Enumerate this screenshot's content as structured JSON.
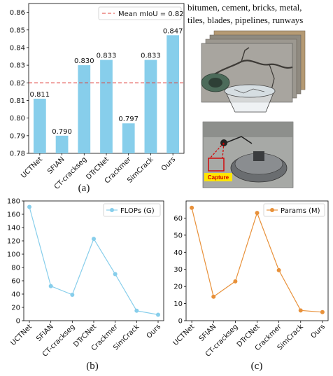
{
  "chart_data": [
    {
      "type": "bar",
      "caption": "(a)",
      "categories": [
        "UCTNet",
        "SFIAN",
        "CT-crackseg",
        "DTrCNet",
        "Crackmer",
        "SimCrack",
        "Ours"
      ],
      "values": [
        0.811,
        0.79,
        0.83,
        0.833,
        0.797,
        0.833,
        0.847
      ],
      "value_labels": [
        "0.811",
        "0.790",
        "0.830",
        "0.833",
        "0.797",
        "0.833",
        "0.847"
      ],
      "ylim": [
        0.78,
        0.865
      ],
      "yticks": [
        0.78,
        0.79,
        0.8,
        0.81,
        0.82,
        0.83,
        0.84,
        0.85,
        0.86
      ],
      "ytick_labels": [
        "0.78",
        "0.79",
        "0.80",
        "0.81",
        "0.82",
        "0.83",
        "0.84",
        "0.85",
        "0.86"
      ],
      "reference_line": {
        "value": 0.82,
        "label": "Mean mIoU = 0.82",
        "color": "#e0403a"
      },
      "bar_color": "#87ceeb",
      "legend_position": "top-right"
    },
    {
      "type": "line",
      "caption": "(b)",
      "categories": [
        "UCTNet",
        "SFIAN",
        "CT-crackseg",
        "DTrCNet",
        "Crackmer",
        "SimCrack",
        "Ours"
      ],
      "series": [
        {
          "name": "FLOPs (G)",
          "values": [
            171,
            52,
            39,
            123,
            70,
            15,
            9
          ],
          "color": "#87ceeb"
        }
      ],
      "ylim": [
        0,
        180
      ],
      "yticks": [
        0,
        20,
        40,
        60,
        80,
        100,
        120,
        140,
        160,
        180
      ],
      "ytick_labels": [
        "0",
        "20",
        "40",
        "60",
        "80",
        "100",
        "120",
        "140",
        "160",
        "180"
      ],
      "grid": false,
      "legend_position": "top-right"
    },
    {
      "type": "line",
      "caption": "(c)",
      "categories": [
        "UCTNet",
        "SFIAN",
        "CT-crackseg",
        "DTrCNet",
        "Crackmer",
        "SimCrack",
        "Ours"
      ],
      "series": [
        {
          "name": "Params (M)",
          "values": [
            66,
            14,
            23,
            63,
            29.5,
            6,
            5
          ],
          "color": "#e8913a"
        }
      ],
      "ylim": [
        0,
        70
      ],
      "yticks": [
        0,
        10,
        20,
        30,
        40,
        50,
        60
      ],
      "ytick_labels": [
        "0",
        "10",
        "20",
        "30",
        "40",
        "50",
        "60"
      ],
      "grid": false,
      "legend_position": "top-right"
    }
  ],
  "figure": {
    "top_text_line1": "bitumen, cement, bricks, metal,",
    "top_text_line2": "tiles, blades, pipelines, runways",
    "capture_label": "Capture"
  }
}
